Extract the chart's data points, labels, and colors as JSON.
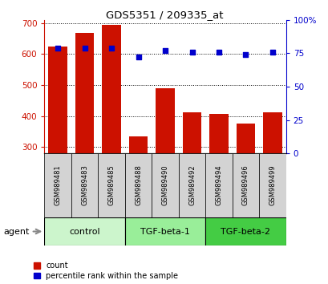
{
  "title": "GDS5351 / 209335_at",
  "samples": [
    "GSM989481",
    "GSM989483",
    "GSM989485",
    "GSM989488",
    "GSM989490",
    "GSM989492",
    "GSM989494",
    "GSM989496",
    "GSM989499"
  ],
  "counts": [
    625,
    668,
    695,
    335,
    490,
    412,
    407,
    376,
    413
  ],
  "percentiles": [
    79,
    79,
    79,
    72,
    77,
    76,
    76,
    74,
    76
  ],
  "groups": [
    {
      "label": "control",
      "indices": [
        0,
        1,
        2
      ],
      "color": "#ccf5cc"
    },
    {
      "label": "TGF-beta-1",
      "indices": [
        3,
        4,
        5
      ],
      "color": "#99ee99"
    },
    {
      "label": "TGF-beta-2",
      "indices": [
        6,
        7,
        8
      ],
      "color": "#44cc44"
    }
  ],
  "bar_color": "#cc1100",
  "dot_color": "#0000cc",
  "ylim_left": [
    280,
    710
  ],
  "ylim_right": [
    0,
    100
  ],
  "yticks_left": [
    300,
    400,
    500,
    600,
    700
  ],
  "yticks_right": [
    0,
    25,
    50,
    75,
    100
  ],
  "yticklabels_right": [
    "0",
    "25",
    "50",
    "75",
    "100%"
  ],
  "left_tick_color": "#cc1100",
  "right_tick_color": "#0000cc",
  "agent_label": "agent",
  "legend_count": "count",
  "legend_percentile": "percentile rank within the sample",
  "sample_box_color": "#d3d3d3",
  "bar_width": 0.7
}
